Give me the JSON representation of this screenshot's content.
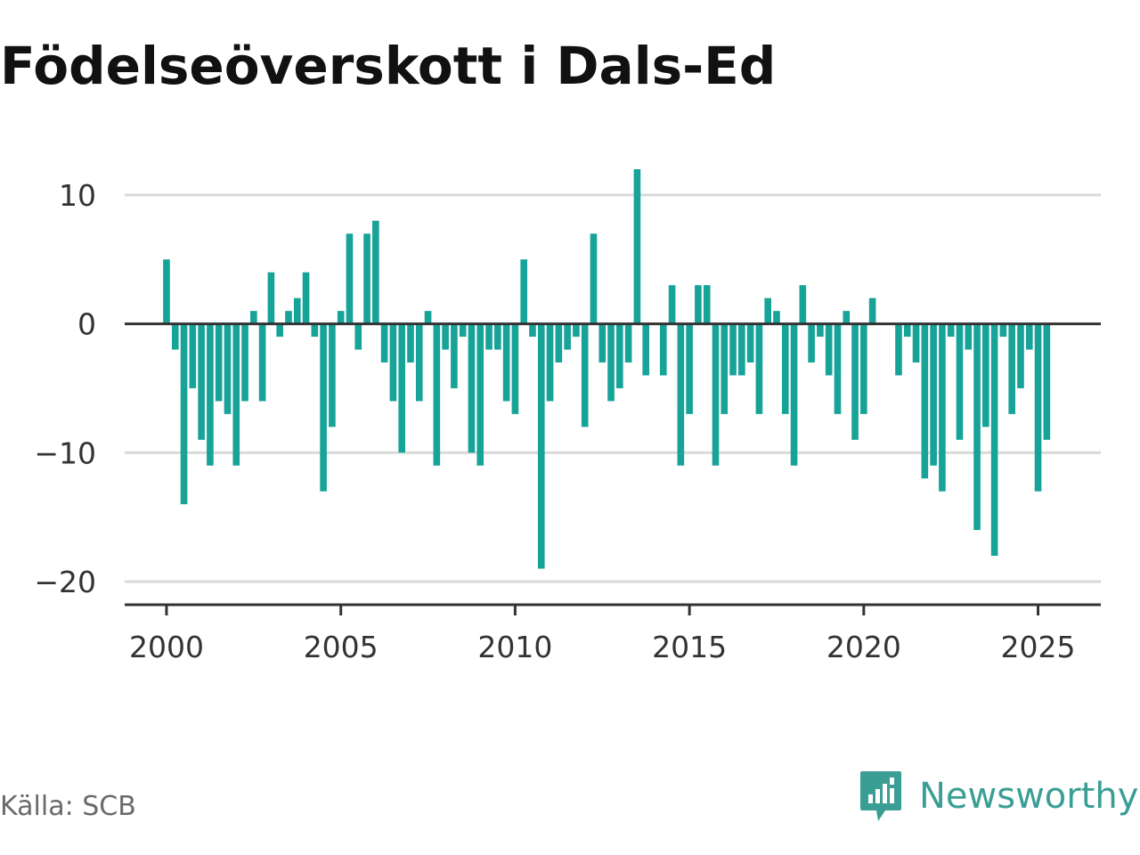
{
  "title": "Födelseöverskott i Dals-Ed",
  "source": "Källa: SCB",
  "brand": {
    "name": "Newsworthy",
    "icon": "newsworthy-logo-icon",
    "color": "#3a9e95"
  },
  "colors": {
    "bar": "#17a398",
    "grid": "#d9d9d9",
    "zero_line": "#333333",
    "axis": "#333333"
  },
  "chart_data": {
    "type": "bar",
    "title": "Födelseöverskott i Dals-Ed",
    "xlabel": "",
    "ylabel": "",
    "x_start": 2000.0,
    "x_step": 0.25,
    "x_ticks": [
      2000,
      2005,
      2010,
      2015,
      2020,
      2025
    ],
    "y_ticks": [
      10,
      0,
      -10,
      -20
    ],
    "y_tick_labels": [
      "10",
      "0",
      "−10",
      "−20"
    ],
    "ylim": [
      -21.8,
      12
    ],
    "xlim": [
      1998.8,
      2026.8
    ],
    "grid": true,
    "values": [
      5,
      -2,
      -14,
      -5,
      -9,
      -11,
      -6,
      -7,
      -11,
      -6,
      1,
      -6,
      4,
      -1,
      1,
      2,
      4,
      -1,
      -13,
      -8,
      1,
      7,
      -2,
      7,
      8,
      -3,
      -6,
      -10,
      -3,
      -6,
      1,
      -11,
      -2,
      -5,
      -1,
      -10,
      -11,
      -2,
      -2,
      -6,
      -7,
      5,
      -1,
      -19,
      -6,
      -3,
      -2,
      -1,
      -8,
      7,
      -3,
      -6,
      -5,
      -3,
      12,
      -4,
      0,
      -4,
      3,
      -11,
      -7,
      3,
      3,
      -11,
      -7,
      -4,
      -4,
      -3,
      -7,
      2,
      1,
      -7,
      -11,
      3,
      -3,
      -1,
      -4,
      -7,
      1,
      -9,
      -7,
      2,
      0,
      0,
      -4,
      -1,
      -3,
      -12,
      -11,
      -13,
      -1,
      -9,
      -2,
      -16,
      -8,
      -18,
      -1,
      -7,
      -5,
      -2,
      -13,
      -9
    ]
  }
}
